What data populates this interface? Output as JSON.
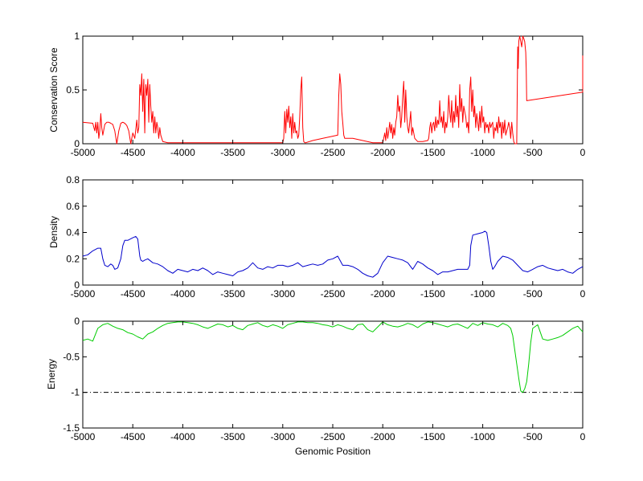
{
  "chart_data": [
    {
      "type": "line",
      "ylabel": "Conservation Score",
      "xlim": [
        -5000,
        0
      ],
      "ylim": [
        0,
        1
      ],
      "xticks": [
        -5000,
        -4500,
        -4000,
        -3500,
        -3000,
        -2500,
        -2000,
        -1500,
        -1000,
        -500,
        0
      ],
      "xtick_labels": [
        "-5000",
        "-4500",
        "-4000",
        "-3500",
        "-3000",
        "-2500",
        "-2000",
        "-1500",
        "-1000",
        "-500",
        "0"
      ],
      "yticks": [
        0,
        0.5,
        1
      ],
      "ytick_labels": [
        "0",
        "0.5",
        "1"
      ],
      "series": [
        {
          "color": "#ff0000",
          "x": [
            -5000,
            -4900,
            -4880,
            -4870,
            -4860,
            -4850,
            -4840,
            -4830,
            -4820,
            -4810,
            -4800,
            -4780,
            -4760,
            -4740,
            -4720,
            -4700,
            -4680,
            -4660,
            -4640,
            -4620,
            -4600,
            -4580,
            -4560,
            -4540,
            -4520,
            -4500,
            -4480,
            -4460,
            -4450,
            -4440,
            -4430,
            -4420,
            -4410,
            -4400,
            -4390,
            -4380,
            -4370,
            -4360,
            -4350,
            -4340,
            -4330,
            -4320,
            -4310,
            -4300,
            -4290,
            -4280,
            -4270,
            -4260,
            -4250,
            -4240,
            -4230,
            -4220,
            -4200,
            -4150,
            -4100,
            -4000,
            -3800,
            -3600,
            -3400,
            -3200,
            -3000,
            -2990,
            -2980,
            -2970,
            -2960,
            -2950,
            -2940,
            -2930,
            -2920,
            -2910,
            -2900,
            -2890,
            -2880,
            -2870,
            -2860,
            -2850,
            -2840,
            -2830,
            -2820,
            -2810,
            -2800,
            -2790,
            -2780,
            -2770,
            -2700,
            -2600,
            -2500,
            -2450,
            -2440,
            -2430,
            -2420,
            -2410,
            -2400,
            -2390,
            -2380,
            -2300,
            -2200,
            -2100,
            -2050,
            -2000,
            -1990,
            -1980,
            -1970,
            -1960,
            -1950,
            -1940,
            -1930,
            -1920,
            -1910,
            -1900,
            -1890,
            -1880,
            -1870,
            -1860,
            -1850,
            -1840,
            -1830,
            -1820,
            -1810,
            -1800,
            -1790,
            -1780,
            -1770,
            -1760,
            -1750,
            -1740,
            -1730,
            -1720,
            -1710,
            -1700,
            -1680,
            -1650,
            -1600,
            -1550,
            -1540,
            -1530,
            -1520,
            -1510,
            -1500,
            -1490,
            -1480,
            -1470,
            -1460,
            -1450,
            -1440,
            -1430,
            -1420,
            -1410,
            -1400,
            -1390,
            -1380,
            -1370,
            -1360,
            -1350,
            -1340,
            -1330,
            -1320,
            -1310,
            -1300,
            -1290,
            -1280,
            -1270,
            -1260,
            -1250,
            -1240,
            -1230,
            -1220,
            -1210,
            -1200,
            -1190,
            -1180,
            -1170,
            -1160,
            -1150,
            -1140,
            -1130,
            -1120,
            -1110,
            -1100,
            -1090,
            -1080,
            -1070,
            -1060,
            -1050,
            -1040,
            -1030,
            -1020,
            -1010,
            -1000,
            -990,
            -980,
            -970,
            -960,
            -950,
            -940,
            -930,
            -920,
            -910,
            -900,
            -890,
            -880,
            -870,
            -860,
            -850,
            -840,
            -830,
            -820,
            -810,
            -800,
            -790,
            -780,
            -770,
            -760,
            -750,
            -740,
            -730,
            -720,
            -710,
            -700,
            -690,
            -680,
            -670,
            -660,
            -650,
            -645,
            -640,
            -630,
            -620,
            -610,
            -600,
            -590,
            -580,
            -570,
            -565,
            -560,
            0,
            0
          ],
          "y": [
            0.2,
            0.19,
            0.12,
            0.2,
            0.1,
            0.2,
            0.05,
            0.12,
            0.28,
            0.15,
            0.08,
            0.18,
            0.2,
            0.2,
            0.19,
            0.18,
            0.12,
            0.0,
            0.12,
            0.19,
            0.2,
            0.19,
            0.17,
            0.12,
            0.0,
            0.1,
            0.05,
            0.22,
            0.1,
            0.15,
            0.55,
            0.45,
            0.65,
            0.3,
            0.6,
            0.1,
            0.55,
            0.45,
            0.6,
            0.2,
            0.55,
            0.35,
            0.2,
            0.3,
            0.1,
            0.25,
            0.1,
            0.2,
            0.15,
            0.05,
            0.15,
            0.08,
            0.02,
            0.01,
            0.01,
            0.01,
            0.01,
            0.01,
            0.01,
            0.01,
            0.01,
            0.05,
            0.3,
            0.1,
            0.32,
            0.2,
            0.35,
            0.15,
            0.25,
            0.05,
            0.28,
            0.1,
            0.2,
            0.1,
            0.12,
            0.05,
            0.08,
            0.25,
            0.5,
            0.62,
            0.15,
            0.02,
            0.01,
            0.01,
            0.03,
            0.05,
            0.07,
            0.08,
            0.45,
            0.65,
            0.55,
            0.3,
            0.2,
            0.08,
            0.05,
            0.05,
            0.03,
            0.01,
            0.01,
            0.01,
            0.05,
            0.1,
            0.03,
            0.15,
            0.05,
            0.12,
            0.2,
            0.1,
            0.18,
            0.05,
            0.15,
            0.08,
            0.2,
            0.25,
            0.45,
            0.3,
            0.35,
            0.15,
            0.25,
            0.45,
            0.58,
            0.2,
            0.5,
            0.25,
            0.15,
            0.1,
            0.2,
            0.3,
            0.08,
            0.15,
            0.05,
            0.02,
            0.02,
            0.03,
            0.05,
            0.15,
            0.2,
            0.1,
            0.18,
            0.2,
            0.12,
            0.25,
            0.15,
            0.22,
            0.18,
            0.4,
            0.2,
            0.25,
            0.15,
            0.3,
            0.1,
            0.2,
            0.15,
            0.25,
            0.45,
            0.3,
            0.2,
            0.4,
            0.15,
            0.3,
            0.2,
            0.45,
            0.25,
            0.35,
            0.15,
            0.55,
            0.3,
            0.42,
            0.2,
            0.35,
            0.3,
            0.25,
            0.15,
            0.2,
            0.1,
            0.5,
            0.62,
            0.3,
            0.5,
            0.25,
            0.35,
            0.15,
            0.28,
            0.2,
            0.12,
            0.3,
            0.15,
            0.35,
            0.2,
            0.25,
            0.1,
            0.2,
            0.15,
            0.18,
            0.1,
            0.2,
            0.15,
            0.18,
            0.2,
            0.05,
            0.15,
            0.12,
            0.2,
            0.1,
            0.25,
            0.15,
            0.2,
            0.05,
            0.2,
            0.1,
            0.22,
            0.08,
            0.12,
            0.15,
            0.2,
            0.15,
            0.05,
            0.2,
            0.1,
            0.02,
            0.0,
            0.0,
            0.0,
            0.9,
            0.7,
            0.95,
            1.0,
            0.95,
            0.9,
            1.0,
            0.98,
            0.95,
            0.85,
            0.7,
            0.4,
            0.48,
            0.82
          ]
        }
      ]
    },
    {
      "type": "line",
      "ylabel": "Density",
      "xlim": [
        -5000,
        0
      ],
      "ylim": [
        0,
        0.8
      ],
      "xticks": [
        -5000,
        -4500,
        -4000,
        -3500,
        -3000,
        -2500,
        -2000,
        -1500,
        -1000,
        -500,
        0
      ],
      "xtick_labels": [
        "-5000",
        "-4500",
        "-4000",
        "-3500",
        "-3000",
        "-2500",
        "-2000",
        "-1500",
        "-1000",
        "-500",
        "0"
      ],
      "yticks": [
        0,
        0.2,
        0.4,
        0.6,
        0.8
      ],
      "ytick_labels": [
        "0",
        "0.2",
        "0.4",
        "0.6",
        "0.8"
      ],
      "series": [
        {
          "color": "#0000cc",
          "x": [
            -5000,
            -4950,
            -4900,
            -4850,
            -4820,
            -4800,
            -4780,
            -4750,
            -4720,
            -4700,
            -4680,
            -4650,
            -4620,
            -4600,
            -4580,
            -4550,
            -4500,
            -4470,
            -4450,
            -4430,
            -4420,
            -4400,
            -4380,
            -4350,
            -4300,
            -4250,
            -4200,
            -4150,
            -4100,
            -4050,
            -4000,
            -3950,
            -3900,
            -3850,
            -3800,
            -3750,
            -3700,
            -3650,
            -3600,
            -3550,
            -3500,
            -3450,
            -3400,
            -3350,
            -3300,
            -3250,
            -3200,
            -3150,
            -3100,
            -3050,
            -3000,
            -2950,
            -2900,
            -2850,
            -2800,
            -2750,
            -2700,
            -2650,
            -2600,
            -2550,
            -2500,
            -2450,
            -2400,
            -2350,
            -2300,
            -2250,
            -2200,
            -2150,
            -2100,
            -2050,
            -2000,
            -1950,
            -1900,
            -1850,
            -1800,
            -1750,
            -1700,
            -1650,
            -1600,
            -1550,
            -1500,
            -1450,
            -1400,
            -1350,
            -1300,
            -1250,
            -1200,
            -1150,
            -1130,
            -1120,
            -1100,
            -1050,
            -1000,
            -980,
            -960,
            -940,
            -920,
            -900,
            -880,
            -850,
            -800,
            -750,
            -700,
            -650,
            -600,
            -550,
            -500,
            -450,
            -400,
            -350,
            -300,
            -250,
            -200,
            -150,
            -100,
            -50,
            0
          ],
          "y": [
            0.22,
            0.23,
            0.26,
            0.28,
            0.28,
            0.2,
            0.15,
            0.14,
            0.16,
            0.15,
            0.12,
            0.13,
            0.2,
            0.3,
            0.34,
            0.34,
            0.36,
            0.37,
            0.35,
            0.22,
            0.19,
            0.18,
            0.19,
            0.2,
            0.17,
            0.16,
            0.14,
            0.11,
            0.09,
            0.12,
            0.11,
            0.1,
            0.12,
            0.11,
            0.13,
            0.11,
            0.08,
            0.1,
            0.09,
            0.08,
            0.07,
            0.1,
            0.11,
            0.13,
            0.17,
            0.13,
            0.12,
            0.14,
            0.13,
            0.15,
            0.15,
            0.14,
            0.15,
            0.17,
            0.14,
            0.15,
            0.16,
            0.15,
            0.16,
            0.19,
            0.2,
            0.22,
            0.15,
            0.15,
            0.14,
            0.12,
            0.09,
            0.07,
            0.06,
            0.09,
            0.17,
            0.22,
            0.21,
            0.2,
            0.19,
            0.17,
            0.12,
            0.18,
            0.16,
            0.13,
            0.11,
            0.08,
            0.1,
            0.1,
            0.11,
            0.12,
            0.12,
            0.12,
            0.15,
            0.3,
            0.38,
            0.39,
            0.4,
            0.41,
            0.4,
            0.3,
            0.18,
            0.12,
            0.14,
            0.18,
            0.22,
            0.21,
            0.19,
            0.15,
            0.11,
            0.1,
            0.12,
            0.14,
            0.15,
            0.13,
            0.12,
            0.11,
            0.12,
            0.1,
            0.09,
            0.12,
            0.14
          ]
        }
      ]
    },
    {
      "type": "line",
      "ylabel": "Energy",
      "xlabel": "Genomic Position",
      "xlim": [
        -5000,
        0
      ],
      "ylim": [
        -1.5,
        0
      ],
      "xticks": [
        -5000,
        -4500,
        -4000,
        -3500,
        -3000,
        -2500,
        -2000,
        -1500,
        -1000,
        -500,
        0
      ],
      "xtick_labels": [
        "-5000",
        "-4500",
        "-4000",
        "-3500",
        "-3000",
        "-2500",
        "-2000",
        "-1500",
        "-1000",
        "-500",
        "0"
      ],
      "yticks": [
        -1.5,
        -1,
        -0.5,
        0
      ],
      "ytick_labels": [
        "-1.5",
        "-1",
        "-0.5",
        "0"
      ],
      "reference_line": {
        "y": -1,
        "style": "dash-dot",
        "color": "#000000"
      },
      "series": [
        {
          "color": "#00cc00",
          "x": [
            -5000,
            -4950,
            -4900,
            -4850,
            -4800,
            -4750,
            -4700,
            -4650,
            -4600,
            -4550,
            -4500,
            -4450,
            -4400,
            -4350,
            -4300,
            -4250,
            -4200,
            -4150,
            -4100,
            -4050,
            -4000,
            -3950,
            -3900,
            -3850,
            -3800,
            -3750,
            -3700,
            -3650,
            -3600,
            -3550,
            -3500,
            -3450,
            -3400,
            -3350,
            -3300,
            -3250,
            -3200,
            -3150,
            -3100,
            -3050,
            -3000,
            -2950,
            -2900,
            -2850,
            -2800,
            -2750,
            -2700,
            -2650,
            -2600,
            -2550,
            -2500,
            -2450,
            -2400,
            -2350,
            -2300,
            -2250,
            -2200,
            -2150,
            -2100,
            -2050,
            -2000,
            -1950,
            -1900,
            -1850,
            -1800,
            -1750,
            -1700,
            -1650,
            -1600,
            -1550,
            -1500,
            -1450,
            -1400,
            -1350,
            -1300,
            -1250,
            -1200,
            -1150,
            -1100,
            -1050,
            -1000,
            -950,
            -900,
            -850,
            -800,
            -750,
            -720,
            -700,
            -680,
            -660,
            -640,
            -620,
            -600,
            -580,
            -560,
            -540,
            -520,
            -500,
            -450,
            -400,
            -350,
            -300,
            -250,
            -200,
            -150,
            -100,
            -50,
            0
          ],
          "y": [
            -0.27,
            -0.25,
            -0.28,
            -0.1,
            -0.05,
            -0.03,
            -0.07,
            -0.1,
            -0.12,
            -0.16,
            -0.18,
            -0.22,
            -0.25,
            -0.18,
            -0.15,
            -0.1,
            -0.06,
            -0.03,
            -0.02,
            -0.01,
            -0.01,
            -0.02,
            -0.03,
            -0.05,
            -0.08,
            -0.1,
            -0.07,
            -0.04,
            -0.05,
            -0.08,
            -0.06,
            -0.1,
            -0.12,
            -0.06,
            -0.04,
            -0.02,
            -0.06,
            -0.08,
            -0.05,
            -0.07,
            -0.1,
            -0.05,
            -0.03,
            -0.01,
            -0.01,
            -0.02,
            -0.02,
            -0.03,
            -0.05,
            -0.06,
            -0.08,
            -0.05,
            -0.07,
            -0.1,
            -0.12,
            -0.05,
            -0.04,
            -0.12,
            -0.15,
            -0.08,
            -0.01,
            -0.05,
            -0.07,
            -0.08,
            -0.06,
            -0.03,
            -0.05,
            -0.09,
            -0.04,
            -0.01,
            -0.02,
            -0.04,
            -0.06,
            -0.08,
            -0.05,
            -0.04,
            -0.07,
            -0.1,
            -0.03,
            -0.06,
            -0.02,
            -0.04,
            -0.05,
            -0.08,
            -0.03,
            -0.06,
            -0.1,
            -0.2,
            -0.4,
            -0.6,
            -0.8,
            -0.98,
            -1.0,
            -0.95,
            -0.85,
            -0.6,
            -0.3,
            -0.1,
            -0.05,
            -0.25,
            -0.27,
            -0.25,
            -0.23,
            -0.2,
            -0.15,
            -0.1,
            -0.07,
            -0.15
          ]
        }
      ]
    }
  ],
  "ui": {
    "xlabel": "Genomic Position"
  }
}
